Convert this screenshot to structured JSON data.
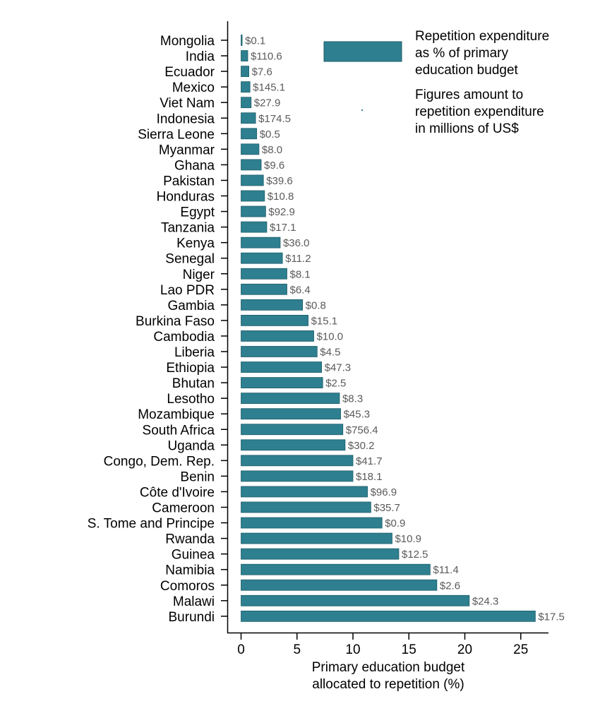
{
  "chart_data": {
    "type": "bar",
    "orientation": "horizontal",
    "bar_color": "#2e7f8f",
    "xlabel": [
      "Primary education budget",
      "allocated to repetition (%)"
    ],
    "xlim": [
      0,
      27
    ],
    "xticks": [
      0,
      5,
      10,
      15,
      20,
      25
    ],
    "grid": false,
    "legend": {
      "position": "top-right",
      "entry": [
        "Repetition expenditure",
        "as % of primary",
        "education budget"
      ],
      "note": [
        "Figures amount to",
        "repetition expenditure",
        "in millions of US$"
      ]
    },
    "categories": [
      "Mongolia",
      "India",
      "Ecuador",
      "Mexico",
      "Viet Nam",
      "Indonesia",
      "Sierra Leone",
      "Myanmar",
      "Ghana",
      "Pakistan",
      "Honduras",
      "Egypt",
      "Tanzania",
      "Kenya",
      "Senegal",
      "Niger",
      "Lao PDR",
      "Gambia",
      "Burkina Faso",
      "Cambodia",
      "Liberia",
      "Ethiopia",
      "Bhutan",
      "Lesotho",
      "Mozambique",
      "South Africa",
      "Uganda",
      "Congo, Dem. Rep.",
      "Benin",
      "Côte d'Ivoire",
      "Cameroon",
      "S. Tome and Principe",
      "Rwanda",
      "Guinea",
      "Namibia",
      "Comoros",
      "Malawi",
      "Burundi"
    ],
    "values": [
      0.1,
      0.6,
      0.7,
      0.8,
      0.9,
      1.3,
      1.4,
      1.6,
      1.8,
      2.0,
      2.1,
      2.2,
      2.3,
      3.5,
      3.7,
      4.1,
      4.1,
      5.5,
      6.0,
      6.5,
      6.8,
      7.2,
      7.3,
      8.8,
      8.9,
      9.1,
      9.3,
      10.0,
      10.0,
      11.3,
      11.6,
      12.6,
      13.5,
      14.1,
      16.9,
      17.5,
      20.4,
      26.3
    ],
    "data_labels": [
      "$0.1",
      "$110.6",
      "$7.6",
      "$145.1",
      "$27.9",
      "$174.5",
      "$0.5",
      "$8.0",
      "$9.6",
      "$39.6",
      "$10.8",
      "$92.9",
      "$17.1",
      "$36.0",
      "$11.2",
      "$8.1",
      "$6.4",
      "$0.8",
      "$15.1",
      "$10.0",
      "$4.5",
      "$47.3",
      "$2.5",
      "$8.3",
      "$45.3",
      "$756.4",
      "$30.2",
      "$41.7",
      "$18.1",
      "$96.9",
      "$35.7",
      "$0.9",
      "$10.9",
      "$12.5",
      "$11.4",
      "$2.6",
      "$24.3",
      "$17.5"
    ]
  }
}
